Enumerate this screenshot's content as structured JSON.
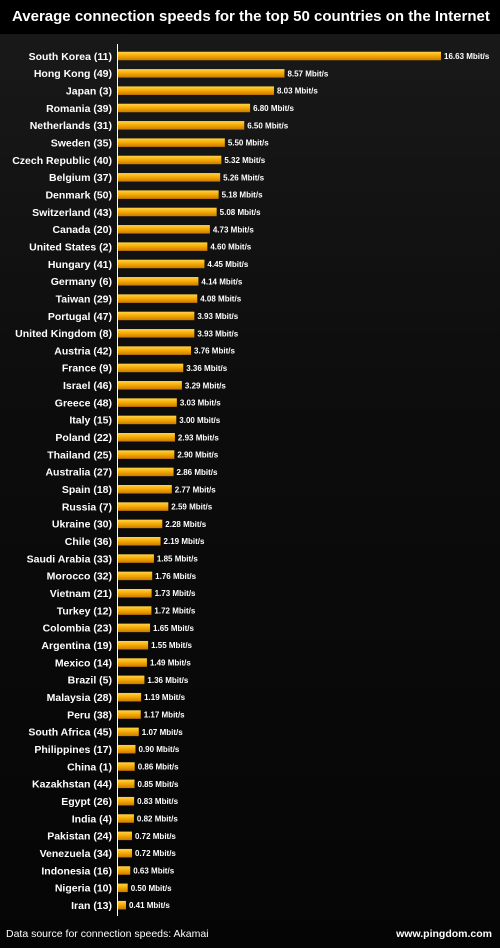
{
  "footer": {
    "source": "Data source for connection speeds: Akamai",
    "brand": "www.pingdom.com"
  },
  "chart_data": {
    "type": "bar",
    "orientation": "horizontal",
    "title": "Average connection speeds for the top 50 countries on the Internet",
    "value_suffix": " Mbit/s",
    "bar_color": "#f5a800",
    "categories": [
      "South Korea (11)",
      "Hong Kong (49)",
      "Japan (3)",
      "Romania (39)",
      "Netherlands (31)",
      "Sweden (35)",
      "Czech Republic (40)",
      "Belgium (37)",
      "Denmark (50)",
      "Switzerland (43)",
      "Canada (20)",
      "United States (2)",
      "Hungary (41)",
      "Germany (6)",
      "Taiwan (29)",
      "Portugal (47)",
      "United Kingdom (8)",
      "Austria (42)",
      "France (9)",
      "Israel (46)",
      "Greece (48)",
      "Italy (15)",
      "Poland (22)",
      "Thailand (25)",
      "Australia (27)",
      "Spain (18)",
      "Russia (7)",
      "Ukraine (30)",
      "Chile (36)",
      "Saudi Arabia (33)",
      "Morocco (32)",
      "Vietnam (21)",
      "Turkey (12)",
      "Colombia (23)",
      "Argentina (19)",
      "Mexico (14)",
      "Brazil (5)",
      "Malaysia (28)",
      "Peru (38)",
      "South Africa (45)",
      "Philippines (17)",
      "China (1)",
      "Kazakhstan (44)",
      "Egypt (26)",
      "India (4)",
      "Pakistan (24)",
      "Venezuela (34)",
      "Indonesia (16)",
      "Nigeria (10)",
      "Iran (13)"
    ],
    "values": [
      16.63,
      8.57,
      8.03,
      6.8,
      6.5,
      5.5,
      5.32,
      5.26,
      5.18,
      5.08,
      4.73,
      4.6,
      4.45,
      4.14,
      4.08,
      3.93,
      3.93,
      3.76,
      3.36,
      3.29,
      3.03,
      3.0,
      2.93,
      2.9,
      2.86,
      2.77,
      2.59,
      2.28,
      2.19,
      1.85,
      1.76,
      1.73,
      1.72,
      1.65,
      1.55,
      1.49,
      1.36,
      1.19,
      1.17,
      1.07,
      0.9,
      0.86,
      0.85,
      0.83,
      0.82,
      0.72,
      0.72,
      0.63,
      0.5,
      0.41
    ],
    "value_labels": [
      "16.63 Mbit/s",
      "8.57 Mbit/s",
      "8.03 Mbit/s",
      "6.80 Mbit/s",
      "6.50 Mbit/s",
      "5.50 Mbit/s",
      "5.32 Mbit/s",
      "5.26 Mbit/s",
      "5.18 Mbit/s",
      "5.08 Mbit/s",
      "4.73 Mbit/s",
      "4.60 Mbit/s",
      "4.45 Mbit/s",
      "4.14 Mbit/s",
      "4.08 Mbit/s",
      "3.93 Mbit/s",
      "3.93 Mbit/s",
      "3.76 Mbit/s",
      "3.36 Mbit/s",
      "3.29 Mbit/s",
      "3.03 Mbit/s",
      "3.00 Mbit/s",
      "2.93 Mbit/s",
      "2.90 Mbit/s",
      "2.86 Mbit/s",
      "2.77 Mbit/s",
      "2.59 Mbit/s",
      "2.28 Mbit/s",
      "2.19 Mbit/s",
      "1.85 Mbit/s",
      "1.76 Mbit/s",
      "1.73 Mbit/s",
      "1.72 Mbit/s",
      "1.65 Mbit/s",
      "1.55 Mbit/s",
      "1.49 Mbit/s",
      "1.36 Mbit/s",
      "1.19 Mbit/s",
      "1.17 Mbit/s",
      "1.07 Mbit/s",
      "0.90 Mbit/s",
      "0.86 Mbit/s",
      "0.85 Mbit/s",
      "0.83 Mbit/s",
      "0.82 Mbit/s",
      "0.72 Mbit/s",
      "0.72 Mbit/s",
      "0.63 Mbit/s",
      "0.50 Mbit/s",
      "0.41 Mbit/s"
    ],
    "xlim": [
      0,
      16.63
    ],
    "grid": false,
    "legend": "none"
  }
}
